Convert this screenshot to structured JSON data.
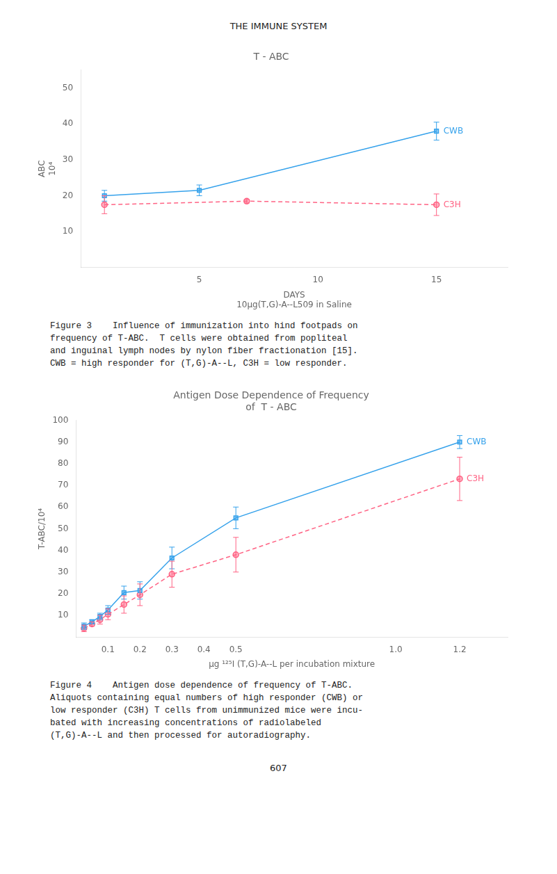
{
  "page_title": "THE IMMUNE SYSTEM",
  "page_number": "607",
  "chart_data": [
    {
      "type": "line",
      "title": "T - ABC",
      "xlabel": "DAYS",
      "xlabel_sub": "10μg(T,G)-A--L509 in Saline",
      "ylabel": [
        "ABC",
        "10⁴"
      ],
      "xlim": [
        0,
        18
      ],
      "ylim": [
        0,
        55
      ],
      "xticks": [
        5,
        10,
        15
      ],
      "yticks": [
        10,
        20,
        30,
        40,
        50
      ],
      "grid": false,
      "series": [
        {
          "name": "CWB",
          "x": [
            1,
            5,
            15
          ],
          "values": [
            20.0,
            21.5,
            38.0
          ],
          "yerr": [
            1.5,
            1.5,
            2.5
          ],
          "marker": "square",
          "line_style": "solid"
        },
        {
          "name": "C3H",
          "x": [
            1,
            7,
            15
          ],
          "values": [
            17.5,
            18.5,
            17.5
          ],
          "yerr": [
            2.5,
            0.5,
            3.0
          ],
          "marker": "circle",
          "line_style": "dashed"
        }
      ],
      "caption": "Figure 3    Influence of immunization into hind footpads on\nfrequency of T-ABC.  T cells were obtained from popliteal\nand inguinal lymph nodes by nylon fiber fractionation [15].\nCWB = high responder for (T,G)-A--L, C3H = low responder."
    },
    {
      "type": "line",
      "title": [
        "Antigen Dose Dependence of Frequency",
        "of  T - ABC"
      ],
      "xlabel": "μg ¹²⁵I (T,G)-A--L per incubation mixture",
      "ylabel": "T-ABC/10⁴",
      "xlim": [
        0,
        1.35
      ],
      "ylim": [
        0,
        100
      ],
      "xticks": [
        0.1,
        0.2,
        0.3,
        0.4,
        0.5,
        {
          "value": 1.0,
          "label": "1.0"
        },
        1.2
      ],
      "yticks": [
        10,
        20,
        30,
        40,
        50,
        60,
        70,
        80,
        90,
        100
      ],
      "grid": false,
      "series": [
        {
          "name": "CWB",
          "x": [
            0.025,
            0.05,
            0.075,
            0.1,
            0.15,
            0.2,
            0.3,
            0.5,
            1.2
          ],
          "values": [
            5.0,
            7.0,
            9.5,
            12.5,
            20.5,
            21.5,
            36.5,
            55.0,
            90.0
          ],
          "yerr": [
            1.5,
            1.0,
            1.5,
            2.0,
            3.0,
            4.0,
            5.0,
            5.0,
            3.0
          ],
          "marker": "square",
          "line_style": "solid"
        },
        {
          "name": "C3H",
          "x": [
            0.025,
            0.05,
            0.075,
            0.1,
            0.15,
            0.2,
            0.3,
            0.5,
            1.2
          ],
          "values": [
            4.0,
            6.0,
            8.0,
            10.5,
            15.0,
            19.5,
            29.0,
            38.0,
            73.0
          ],
          "yerr": [
            1.5,
            1.0,
            2.0,
            2.5,
            4.0,
            5.0,
            6.0,
            8.0,
            10.0
          ],
          "marker": "circle",
          "line_style": "dashed"
        }
      ],
      "caption": "Figure 4    Antigen dose dependence of frequency of T-ABC.\nAliquots containing equal numbers of high responder (CWB) or\nlow responder (C3H) T cells from unimmunized mice were incu-\nbated with increasing concentrations of radiolabeled\n(T,G)-A--L and then processed for autoradiography."
    }
  ]
}
